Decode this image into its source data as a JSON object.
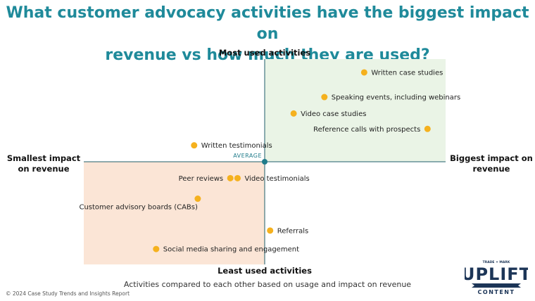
{
  "header": {
    "title_line1": "What customer advocacy activities have the biggest impact on",
    "title_line2": "revenue vs how much they are used?"
  },
  "chart_data": {
    "type": "scatter",
    "axes": {
      "top_label": "Most used activities",
      "bottom_label": "Least used activities",
      "left_label_line1": "Smallest impact",
      "left_label_line2": "on revenue",
      "right_label_line1": "Biggest impact on",
      "right_label_line2": "revenue",
      "center_label": "AVERAGE"
    },
    "xlim": [
      -1,
      1
    ],
    "ylim": [
      -1,
      1
    ],
    "x_meaning": "impact on revenue (relative to average)",
    "y_meaning": "usage (relative to average)",
    "quadrant_colors": {
      "top_right": "#eaf4e6",
      "bottom_left": "#fbe5d6"
    },
    "point_color": "#f5b11e",
    "axis_color": "#1f5e6b",
    "points": [
      {
        "label": "Written case studies",
        "x": 0.55,
        "y": 0.87,
        "label_side": "right"
      },
      {
        "label": "Speaking events, including webinars",
        "x": 0.33,
        "y": 0.63,
        "label_side": "right"
      },
      {
        "label": "Video case studies",
        "x": 0.16,
        "y": 0.47,
        "label_side": "right"
      },
      {
        "label": "Reference calls with prospects",
        "x": 0.9,
        "y": 0.32,
        "label_side": "left"
      },
      {
        "label": "Written testimonials",
        "x": -0.39,
        "y": 0.16,
        "label_side": "right"
      },
      {
        "label": "Peer reviews",
        "x": -0.19,
        "y": -0.16,
        "label_side": "left"
      },
      {
        "label": "Video testimonials",
        "x": -0.15,
        "y": -0.16,
        "label_side": "right"
      },
      {
        "label": "Customer advisory boards (CABs)",
        "x": -0.37,
        "y": -0.36,
        "label_side": "below-left"
      },
      {
        "label": "Referrals",
        "x": 0.03,
        "y": -0.67,
        "label_side": "right"
      },
      {
        "label": "Social media sharing and engagement",
        "x": -0.6,
        "y": -0.85,
        "label_side": "right"
      }
    ]
  },
  "caption": "Activities compared to each other based on usage and impact on revenue",
  "footer": "© 2024 Case Study Trends and Insights Report",
  "logo": {
    "top_text": "TRADE ✦ MARK",
    "main_text": "UPLIFT",
    "sub_text": "CONTENT"
  }
}
